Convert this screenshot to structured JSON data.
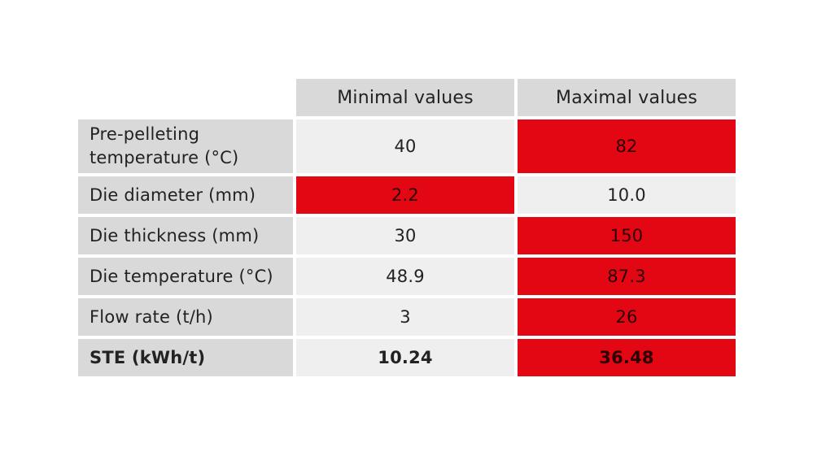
{
  "highlight_color": "#e30613",
  "table": {
    "headers": [
      "Minimal values",
      "Maximal values"
    ],
    "rows": [
      {
        "label": "Pre-pelleting temperature (°C)",
        "min": "40",
        "max": "82",
        "highlight": "max"
      },
      {
        "label": "Die diameter (mm)",
        "min": "2.2",
        "max": "10.0",
        "highlight": "min"
      },
      {
        "label": "Die thickness (mm)",
        "min": "30",
        "max": "150",
        "highlight": "max"
      },
      {
        "label": "Die temperature (°C)",
        "min": "48.9",
        "max": "87.3",
        "highlight": "max"
      },
      {
        "label": "Flow rate (t/h)",
        "min": "3",
        "max": "26",
        "highlight": "max"
      },
      {
        "label": "STE (kWh/t)",
        "min": "10.24",
        "max": "36.48",
        "highlight": "max",
        "bold": true
      }
    ]
  }
}
